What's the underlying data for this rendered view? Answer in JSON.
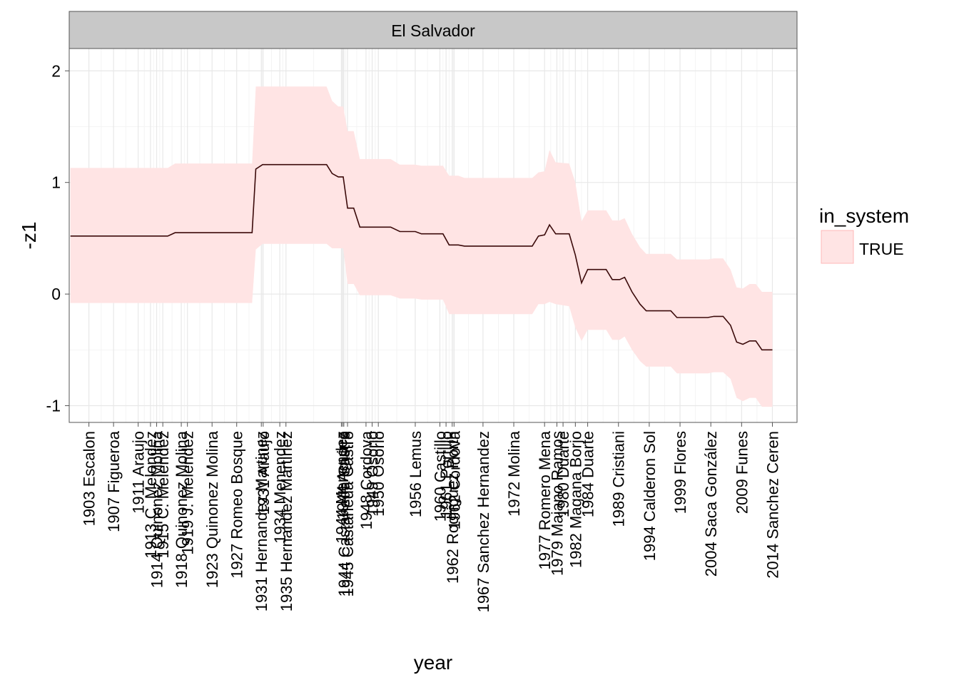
{
  "chart_data": {
    "type": "area",
    "facet_label": "El Salvador",
    "xlabel": "year",
    "ylabel": "-z1",
    "xlim": [
      1899.8,
      2018
    ],
    "ylim": [
      -1.15,
      2.0
    ],
    "y_ticks": [
      -1,
      0,
      1,
      2
    ],
    "grid": true,
    "legend": {
      "title": "in_system",
      "placement": "right",
      "entries": [
        {
          "label": "TRUE",
          "fill": "#FFE4E4",
          "stroke": "#FFB8B8"
        }
      ]
    },
    "colors": {
      "band": "#FFE4E4",
      "line": "#3B0A0A",
      "panel_border": "#555555",
      "grid_major": "#E8E8E8",
      "grid_minor": "#F4F4F4",
      "strip": "#C8C8C8"
    },
    "series": [
      {
        "name": "TRUE",
        "points": [
          {
            "x": 1900.0,
            "y": 0.52,
            "lo": -0.08,
            "hi": 1.13
          },
          {
            "x": 1915.8,
            "y": 0.52,
            "lo": -0.08,
            "hi": 1.13
          },
          {
            "x": 1917.0,
            "y": 0.55,
            "lo": -0.08,
            "hi": 1.17
          },
          {
            "x": 1929.5,
            "y": 0.55,
            "lo": -0.08,
            "hi": 1.17
          },
          {
            "x": 1930.1,
            "y": 1.12,
            "lo": 0.4,
            "hi": 1.86
          },
          {
            "x": 1931.2,
            "y": 1.16,
            "lo": 0.45,
            "hi": 1.86
          },
          {
            "x": 1941.6,
            "y": 1.16,
            "lo": 0.45,
            "hi": 1.86
          },
          {
            "x": 1942.5,
            "y": 1.08,
            "lo": 0.41,
            "hi": 1.73
          },
          {
            "x": 1943.5,
            "y": 1.05,
            "lo": 0.41,
            "hi": 1.68
          },
          {
            "x": 1944.3,
            "y": 1.05,
            "lo": 0.41,
            "hi": 1.68
          },
          {
            "x": 1945.0,
            "y": 0.77,
            "lo": 0.09,
            "hi": 1.46
          },
          {
            "x": 1946.0,
            "y": 0.77,
            "lo": 0.09,
            "hi": 1.46
          },
          {
            "x": 1947.0,
            "y": 0.6,
            "lo": -0.01,
            "hi": 1.21
          },
          {
            "x": 1952.0,
            "y": 0.6,
            "lo": -0.01,
            "hi": 1.21
          },
          {
            "x": 1953.5,
            "y": 0.56,
            "lo": -0.04,
            "hi": 1.16
          },
          {
            "x": 1956.0,
            "y": 0.56,
            "lo": -0.04,
            "hi": 1.16
          },
          {
            "x": 1957.0,
            "y": 0.54,
            "lo": -0.05,
            "hi": 1.15
          },
          {
            "x": 1960.5,
            "y": 0.54,
            "lo": -0.05,
            "hi": 1.15
          },
          {
            "x": 1961.5,
            "y": 0.44,
            "lo": -0.18,
            "hi": 1.06
          },
          {
            "x": 1963.0,
            "y": 0.44,
            "lo": -0.18,
            "hi": 1.06
          },
          {
            "x": 1964.0,
            "y": 0.43,
            "lo": -0.18,
            "hi": 1.04
          },
          {
            "x": 1975.0,
            "y": 0.43,
            "lo": -0.18,
            "hi": 1.04
          },
          {
            "x": 1976.0,
            "y": 0.52,
            "lo": -0.09,
            "hi": 1.09
          },
          {
            "x": 1977.0,
            "y": 0.53,
            "lo": -0.09,
            "hi": 1.1
          },
          {
            "x": 1977.8,
            "y": 0.62,
            "lo": -0.07,
            "hi": 1.29
          },
          {
            "x": 1978.8,
            "y": 0.54,
            "lo": -0.09,
            "hi": 1.18
          },
          {
            "x": 1981.0,
            "y": 0.54,
            "lo": -0.11,
            "hi": 1.17
          },
          {
            "x": 1982.0,
            "y": 0.35,
            "lo": -0.3,
            "hi": 1.0
          },
          {
            "x": 1983.0,
            "y": 0.1,
            "lo": -0.42,
            "hi": 0.65
          },
          {
            "x": 1984.0,
            "y": 0.22,
            "lo": -0.32,
            "hi": 0.75
          },
          {
            "x": 1987.0,
            "y": 0.22,
            "lo": -0.32,
            "hi": 0.75
          },
          {
            "x": 1988.0,
            "y": 0.13,
            "lo": -0.41,
            "hi": 0.66
          },
          {
            "x": 1989.2,
            "y": 0.13,
            "lo": -0.41,
            "hi": 0.66
          },
          {
            "x": 1990.0,
            "y": 0.15,
            "lo": -0.38,
            "hi": 0.68
          },
          {
            "x": 1991.2,
            "y": 0.02,
            "lo": -0.5,
            "hi": 0.54
          },
          {
            "x": 1992.5,
            "y": -0.09,
            "lo": -0.6,
            "hi": 0.42
          },
          {
            "x": 1993.5,
            "y": -0.15,
            "lo": -0.65,
            "hi": 0.36
          },
          {
            "x": 1997.5,
            "y": -0.15,
            "lo": -0.65,
            "hi": 0.36
          },
          {
            "x": 1998.5,
            "y": -0.21,
            "lo": -0.71,
            "hi": 0.31
          },
          {
            "x": 2003.5,
            "y": -0.21,
            "lo": -0.71,
            "hi": 0.31
          },
          {
            "x": 2004.5,
            "y": -0.2,
            "lo": -0.7,
            "hi": 0.32
          },
          {
            "x": 2006.0,
            "y": -0.2,
            "lo": -0.7,
            "hi": 0.32
          },
          {
            "x": 2007.2,
            "y": -0.28,
            "lo": -0.76,
            "hi": 0.22
          },
          {
            "x": 2008.2,
            "y": -0.43,
            "lo": -0.93,
            "hi": 0.06
          },
          {
            "x": 2009.2,
            "y": -0.45,
            "lo": -0.96,
            "hi": 0.05
          },
          {
            "x": 2010.3,
            "y": -0.42,
            "lo": -0.93,
            "hi": 0.09
          },
          {
            "x": 2011.3,
            "y": -0.42,
            "lo": -0.93,
            "hi": 0.09
          },
          {
            "x": 2012.3,
            "y": -0.5,
            "lo": -1.01,
            "hi": 0.02
          },
          {
            "x": 2014.0,
            "y": -0.5,
            "lo": -1.01,
            "hi": 0.02
          }
        ]
      }
    ],
    "x_ticks": [
      {
        "x": 1903,
        "label": "1903 Escalon"
      },
      {
        "x": 1907,
        "label": "1907 Figueroa"
      },
      {
        "x": 1911,
        "label": "1911 Araujo"
      },
      {
        "x": 1913,
        "label": "1913 C. Melendez"
      },
      {
        "x": 1914,
        "label": "1914 Quinonez Molina"
      },
      {
        "x": 1915,
        "label": "1915 C. Melendez"
      },
      {
        "x": 1918,
        "label": "1918 Quinonez Molina"
      },
      {
        "x": 1919,
        "label": "1919 J. Melendez"
      },
      {
        "x": 1923,
        "label": "1923 Quinonez Molina"
      },
      {
        "x": 1927,
        "label": "1927 Romeo Bosque"
      },
      {
        "x": 1931,
        "label": "1931 Hernandez Martinez"
      },
      {
        "x": 1931.3,
        "label": "1931 Araujo"
      },
      {
        "x": 1934,
        "label": "1934 Menendez"
      },
      {
        "x": 1935,
        "label": "1935 Hernandez Martinez"
      },
      {
        "x": 1944,
        "label": "1944 Menendez"
      },
      {
        "x": 1944.2,
        "label": "1944 Aguirre"
      },
      {
        "x": 1944.4,
        "label": "1944 Castaneda Castro"
      },
      {
        "x": 1945,
        "label": "1945 Castaneda Castro"
      },
      {
        "x": 1948,
        "label": "1948 Cordova"
      },
      {
        "x": 1949,
        "label": "1949 Osorio"
      },
      {
        "x": 1950,
        "label": "1950 Osorio"
      },
      {
        "x": 1956,
        "label": "1956 Lemus"
      },
      {
        "x": 1960,
        "label": "1960 Castillo"
      },
      {
        "x": 1961,
        "label": "1961 Portillo"
      },
      {
        "x": 1962,
        "label": "1962 Rodriguez Porth"
      },
      {
        "x": 1962.3,
        "label": "1962 Cordova"
      },
      {
        "x": 1967,
        "label": "1967 Sanchez Hernandez"
      },
      {
        "x": 1972,
        "label": "1972 Molina"
      },
      {
        "x": 1977,
        "label": "1977 Romero Mena"
      },
      {
        "x": 1979,
        "label": "1979 Majano Ramos"
      },
      {
        "x": 1980,
        "label": "1980 Duarte"
      },
      {
        "x": 1982,
        "label": "1982 Magana Borjo"
      },
      {
        "x": 1984,
        "label": "1984 Duarte"
      },
      {
        "x": 1989,
        "label": "1989 Cristiani"
      },
      {
        "x": 1994,
        "label": "1994 Calderon Sol"
      },
      {
        "x": 1999,
        "label": "1999 Flores"
      },
      {
        "x": 2004,
        "label": "2004 Saca González"
      },
      {
        "x": 2009,
        "label": "2009 Funes"
      },
      {
        "x": 2014,
        "label": "2014 Sanchez Ceren"
      }
    ]
  }
}
